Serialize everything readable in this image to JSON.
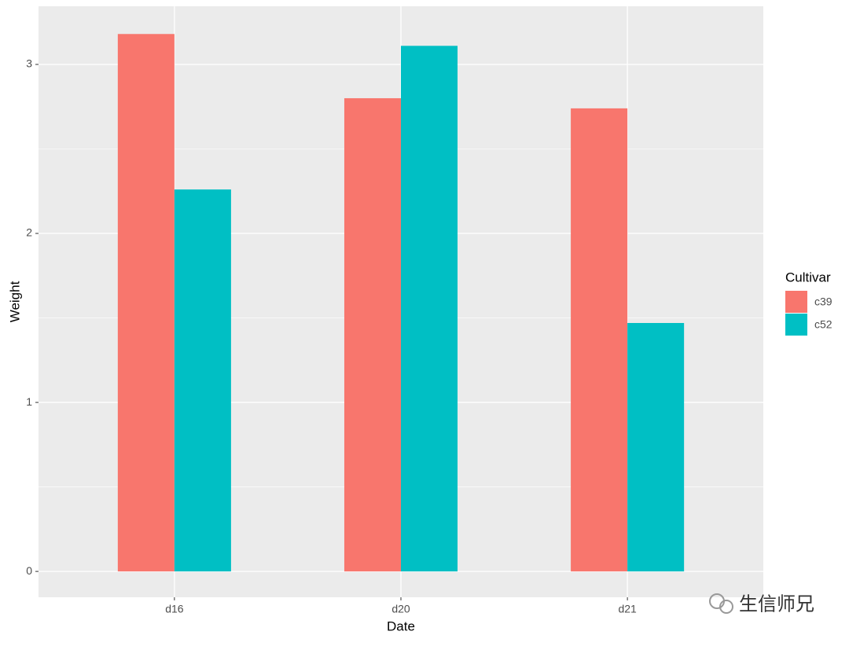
{
  "chart_data": {
    "type": "bar",
    "x_label": "Date",
    "y_label": "Weight",
    "categories": [
      "d16",
      "d20",
      "d21"
    ],
    "series": [
      {
        "name": "c39",
        "color": "#f8766d",
        "values": [
          3.18,
          2.8,
          2.74
        ]
      },
      {
        "name": "c52",
        "color": "#00bfc4",
        "values": [
          2.26,
          3.11,
          1.47
        ]
      }
    ],
    "ylim": [
      -0.153,
      3.344
    ],
    "yticks": [
      0,
      1,
      2,
      3
    ],
    "grid": true,
    "minor_grid": true,
    "panel_color": "#ebebeb",
    "legend_title": "Cultivar",
    "legend_position": "right"
  },
  "watermark": "生信师兄"
}
